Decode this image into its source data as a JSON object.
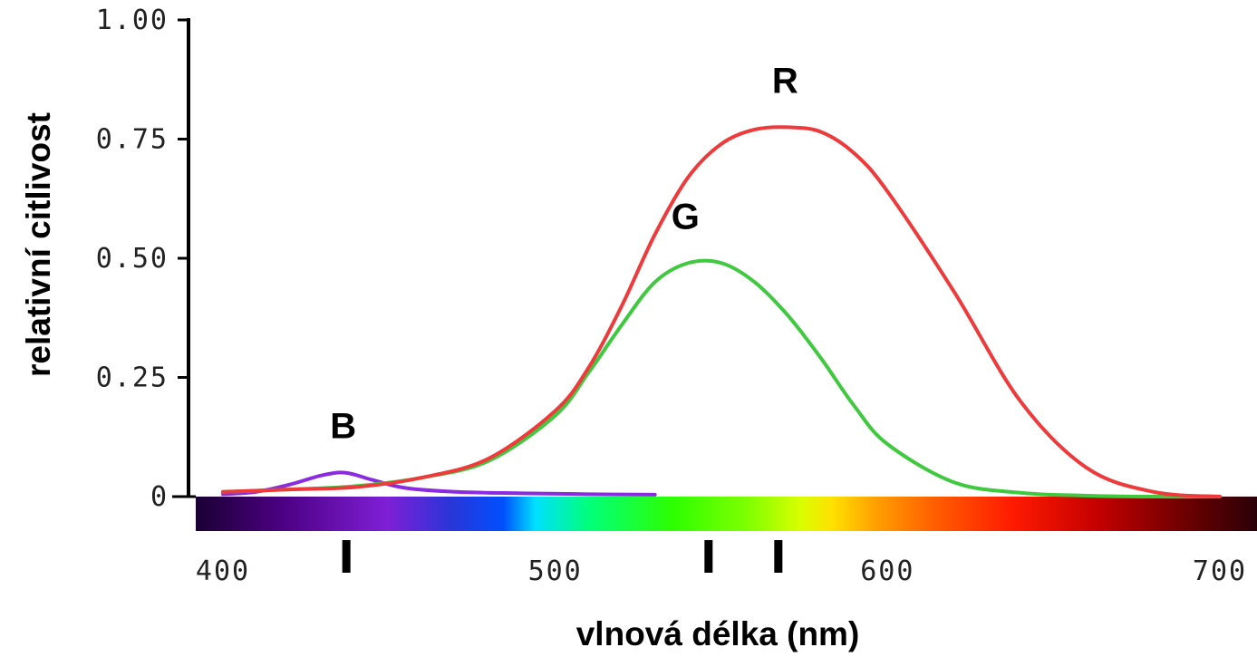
{
  "chart_data": {
    "type": "line",
    "title": "",
    "xlabel": "vlnová délka (nm)",
    "ylabel": "relativní citlivost",
    "xlim": [
      400,
      700
    ],
    "ylim": [
      0,
      1.0
    ],
    "x_ticks": [
      "400",
      "500",
      "600",
      "700"
    ],
    "y_ticks": [
      "0",
      "0.25",
      "0.50",
      "0.75",
      "1.00"
    ],
    "grid": false,
    "legend": "none",
    "spectrum_bar": true,
    "peak_markers_nm": [
      437,
      546,
      567
    ],
    "series": [
      {
        "label": "R",
        "color": "#ee3a3a",
        "x": [
          400,
          420,
          440,
          460,
          480,
          500,
          510,
          520,
          530,
          540,
          550,
          560,
          570,
          580,
          590,
          600,
          620,
          640,
          660,
          680,
          700
        ],
        "y": [
          0.01,
          0.015,
          0.02,
          0.04,
          0.08,
          0.18,
          0.27,
          0.4,
          0.55,
          0.67,
          0.74,
          0.77,
          0.775,
          0.765,
          0.72,
          0.64,
          0.43,
          0.2,
          0.06,
          0.01,
          0.0
        ]
      },
      {
        "label": "G",
        "color": "#3ec93e",
        "x": [
          400,
          420,
          440,
          460,
          480,
          500,
          510,
          520,
          530,
          540,
          550,
          560,
          570,
          580,
          590,
          600,
          620,
          640,
          660,
          680,
          700
        ],
        "y": [
          0.01,
          0.015,
          0.022,
          0.04,
          0.075,
          0.17,
          0.26,
          0.36,
          0.45,
          0.49,
          0.49,
          0.45,
          0.38,
          0.29,
          0.19,
          0.11,
          0.03,
          0.008,
          0.002,
          0.0,
          0.0
        ]
      },
      {
        "label": "B",
        "color": "#8a2be2",
        "x": [
          400,
          410,
          420,
          430,
          437,
          445,
          455,
          470,
          490,
          510,
          530
        ],
        "y": [
          0.005,
          0.01,
          0.025,
          0.045,
          0.05,
          0.035,
          0.018,
          0.01,
          0.007,
          0.005,
          0.004
        ]
      }
    ]
  }
}
